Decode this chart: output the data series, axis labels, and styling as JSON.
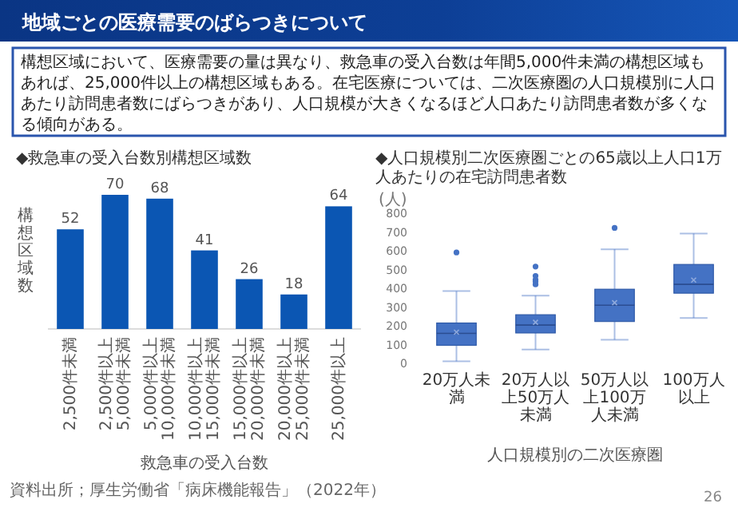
{
  "chart_data": [
    {
      "type": "other",
      "title": "地域ごとの医療需要のばらつきについて",
      "annotations": [
        "構想区域において、医療需要の量は異なり、救急車の受入台数は年間5,000件未満の構想区域もあれば、25,000件以上の構想区域もある。在宅医療については、二次医療圏の人口規模別に人口あたり訪問患者数にばらつきがあり、人口規模が大きくなるほど人口あたり訪問患者数が多くなる傾向がある。",
        "26"
      ]
    },
    {
      "type": "bar",
      "title": "◆救急車の受入台数別構想区域数",
      "xlabel": "救急車の受入台数",
      "ylabel": "構想区域数",
      "categories": [
        "2,500件未満",
        "2,500件以上5,000件未満",
        "5,000件以上10,000件未満",
        "10,000件以上15,000件未満",
        "15,000件以上20,000件未満",
        "20,000件以上25,000件未満",
        "25,000件以上"
      ],
      "values": [
        52,
        70,
        68,
        41,
        26,
        18,
        64
      ],
      "color": "#0b56b3",
      "data_labels": true,
      "annotations": [
        "資料出所；厚生労働省「病床機能報告」（2022年）"
      ]
    },
    {
      "type": "box",
      "title": "◆人口規模別二次医療圏ごとの65歳以上人口1万人あたりの在宅訪問患者数",
      "ylabel": "(人)",
      "xlabel": "人口規模別の二次医療圏",
      "categories": [
        "20万人未満",
        "20万人以上50万人未満",
        "50万人以上100万人未満",
        "100万人以上"
      ],
      "color": "#4472c4",
      "ylim": [
        0,
        800
      ],
      "yticks": [
        0,
        100,
        200,
        300,
        400,
        500,
        600,
        700,
        800
      ],
      "boxes": [
        {
          "low": 15,
          "q1": 100,
          "median": 164,
          "q3": 219,
          "high": 389,
          "mean": 170,
          "outliers": [
            595
          ]
        },
        {
          "low": 78,
          "q1": 166,
          "median": 208,
          "q3": 263,
          "high": 365,
          "mean": 223,
          "outliers": [
            425,
            440,
            450,
            470,
            520
          ]
        },
        {
          "low": 130,
          "q1": 227,
          "median": 314,
          "q3": 399,
          "high": 612,
          "mean": 327,
          "outliers": [
            726
          ]
        },
        {
          "low": 246,
          "q1": 378,
          "median": 425,
          "q3": 531,
          "high": 696,
          "mean": 448
        }
      ]
    }
  ]
}
